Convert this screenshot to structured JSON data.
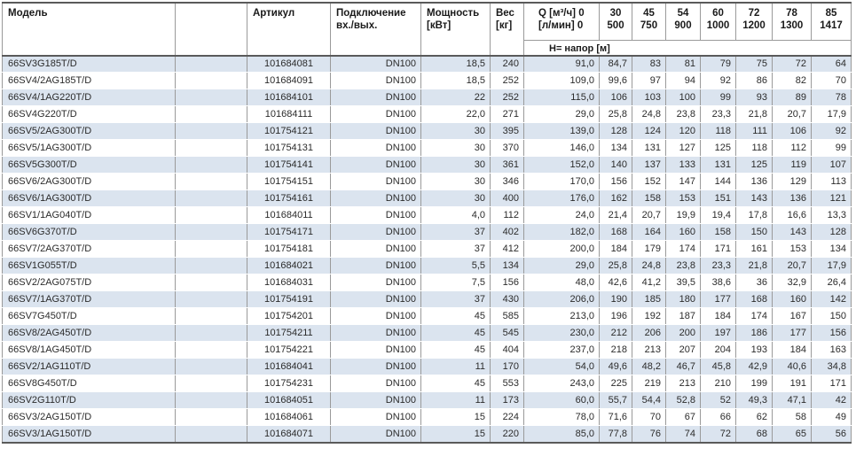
{
  "table": {
    "header": {
      "model": "Модель",
      "article": "Артикул",
      "connection_line1": "Подключение",
      "connection_line2": "вх./вых.",
      "power_line1": "Мощность",
      "power_line2": "[кВт]",
      "weight_line1": "Вес",
      "weight_line2": "[кг]",
      "q_line1": "Q [м³/ч] 0",
      "q_line2": "[л/мин] 0",
      "head_label": "Н= напор [м]",
      "flow_columns": [
        {
          "m3h": "30",
          "lmin": "500"
        },
        {
          "m3h": "45",
          "lmin": "750"
        },
        {
          "m3h": "54",
          "lmin": "900"
        },
        {
          "m3h": "60",
          "lmin": "1000"
        },
        {
          "m3h": "72",
          "lmin": "1200"
        },
        {
          "m3h": "78",
          "lmin": "1300"
        },
        {
          "m3h": "85",
          "lmin": "1417"
        }
      ]
    },
    "rows": [
      {
        "model": "66SV3G185T/D",
        "article": "101684081",
        "connection": "DN100",
        "power": "18,5",
        "weight": "240",
        "heads": [
          "91,0",
          "84,7",
          "83",
          "81",
          "79",
          "75",
          "72",
          "64"
        ]
      },
      {
        "model": "66SV4/2AG185T/D",
        "article": "101684091",
        "connection": "DN100",
        "power": "18,5",
        "weight": "252",
        "heads": [
          "109,0",
          "99,6",
          "97",
          "94",
          "92",
          "86",
          "82",
          "70"
        ]
      },
      {
        "model": "66SV4/1AG220T/D",
        "article": "101684101",
        "connection": "DN100",
        "power": "22",
        "weight": "252",
        "heads": [
          "115,0",
          "106",
          "103",
          "100",
          "99",
          "93",
          "89",
          "78"
        ]
      },
      {
        "model": "66SV4G220T/D",
        "article": "101684111",
        "connection": "DN100",
        "power": "22,0",
        "weight": "271",
        "heads": [
          "29,0",
          "25,8",
          "24,8",
          "23,8",
          "23,3",
          "21,8",
          "20,7",
          "17,9"
        ]
      },
      {
        "model": "66SV5/2AG300T/D",
        "article": "101754121",
        "connection": "DN100",
        "power": "30",
        "weight": "395",
        "heads": [
          "139,0",
          "128",
          "124",
          "120",
          "118",
          "111",
          "106",
          "92"
        ]
      },
      {
        "model": "66SV5/1AG300T/D",
        "article": "101754131",
        "connection": "DN100",
        "power": "30",
        "weight": "370",
        "heads": [
          "146,0",
          "134",
          "131",
          "127",
          "125",
          "118",
          "112",
          "99"
        ]
      },
      {
        "model": "66SV5G300T/D",
        "article": "101754141",
        "connection": "DN100",
        "power": "30",
        "weight": "361",
        "heads": [
          "152,0",
          "140",
          "137",
          "133",
          "131",
          "125",
          "119",
          "107"
        ]
      },
      {
        "model": "66SV6/2AG300T/D",
        "article": "101754151",
        "connection": "DN100",
        "power": "30",
        "weight": "346",
        "heads": [
          "170,0",
          "156",
          "152",
          "147",
          "144",
          "136",
          "129",
          "113"
        ]
      },
      {
        "model": "66SV6/1AG300T/D",
        "article": "101754161",
        "connection": "DN100",
        "power": "30",
        "weight": "400",
        "heads": [
          "176,0",
          "162",
          "158",
          "153",
          "151",
          "143",
          "136",
          "121"
        ]
      },
      {
        "model": "66SV1/1AG040T/D",
        "article": "101684011",
        "connection": "DN100",
        "power": "4,0",
        "weight": "112",
        "heads": [
          "24,0",
          "21,4",
          "20,7",
          "19,9",
          "19,4",
          "17,8",
          "16,6",
          "13,3"
        ]
      },
      {
        "model": "66SV6G370T/D",
        "article": "101754171",
        "connection": "DN100",
        "power": "37",
        "weight": "402",
        "heads": [
          "182,0",
          "168",
          "164",
          "160",
          "158",
          "150",
          "143",
          "128"
        ]
      },
      {
        "model": "66SV7/2AG370T/D",
        "article": "101754181",
        "connection": "DN100",
        "power": "37",
        "weight": "412",
        "heads": [
          "200,0",
          "184",
          "179",
          "174",
          "171",
          "161",
          "153",
          "134"
        ]
      },
      {
        "model": "66SV1G055T/D",
        "article": "101684021",
        "connection": "DN100",
        "power": "5,5",
        "weight": "134",
        "heads": [
          "29,0",
          "25,8",
          "24,8",
          "23,8",
          "23,3",
          "21,8",
          "20,7",
          "17,9"
        ]
      },
      {
        "model": "66SV2/2AG075T/D",
        "article": "101684031",
        "connection": "DN100",
        "power": "7,5",
        "weight": "156",
        "heads": [
          "48,0",
          "42,6",
          "41,2",
          "39,5",
          "38,6",
          "36",
          "32,9",
          "26,4"
        ]
      },
      {
        "model": "66SV7/1AG370T/D",
        "article": "101754191",
        "connection": "DN100",
        "power": "37",
        "weight": "430",
        "heads": [
          "206,0",
          "190",
          "185",
          "180",
          "177",
          "168",
          "160",
          "142"
        ]
      },
      {
        "model": "66SV7G450T/D",
        "article": "101754201",
        "connection": "DN100",
        "power": "45",
        "weight": "585",
        "heads": [
          "213,0",
          "196",
          "192",
          "187",
          "184",
          "174",
          "167",
          "150"
        ]
      },
      {
        "model": "66SV8/2AG450T/D",
        "article": "101754211",
        "connection": "DN100",
        "power": "45",
        "weight": "545",
        "heads": [
          "230,0",
          "212",
          "206",
          "200",
          "197",
          "186",
          "177",
          "156"
        ]
      },
      {
        "model": "66SV8/1AG450T/D",
        "article": "101754221",
        "connection": "DN100",
        "power": "45",
        "weight": "404",
        "heads": [
          "237,0",
          "218",
          "213",
          "207",
          "204",
          "193",
          "184",
          "163"
        ]
      },
      {
        "model": "66SV2/1AG110T/D",
        "article": "101684041",
        "connection": "DN100",
        "power": "11",
        "weight": "170",
        "heads": [
          "54,0",
          "49,6",
          "48,2",
          "46,7",
          "45,8",
          "42,9",
          "40,6",
          "34,8"
        ]
      },
      {
        "model": "66SV8G450T/D",
        "article": "101754231",
        "connection": "DN100",
        "power": "45",
        "weight": "553",
        "heads": [
          "243,0",
          "225",
          "219",
          "213",
          "210",
          "199",
          "191",
          "171"
        ]
      },
      {
        "model": "66SV2G110T/D",
        "article": "101684051",
        "connection": "DN100",
        "power": "11",
        "weight": "173",
        "heads": [
          "60,0",
          "55,7",
          "54,4",
          "52,8",
          "52",
          "49,3",
          "47,1",
          "42"
        ]
      },
      {
        "model": "66SV3/2AG150T/D",
        "article": "101684061",
        "connection": "DN100",
        "power": "15",
        "weight": "224",
        "heads": [
          "78,0",
          "71,6",
          "70",
          "67",
          "66",
          "62",
          "58",
          "49"
        ]
      },
      {
        "model": "66SV3/1AG150T/D",
        "article": "101684071",
        "connection": "DN100",
        "power": "15",
        "weight": "220",
        "heads": [
          "85,0",
          "77,8",
          "76",
          "74",
          "72",
          "68",
          "65",
          "56"
        ]
      }
    ]
  },
  "colors": {
    "stripe": "#dbe4ef",
    "grid_border": "#9a9a9a",
    "outer_border": "#5a5a5a",
    "header_text": "#1a1a1a",
    "body_text": "#2b2b2b"
  }
}
